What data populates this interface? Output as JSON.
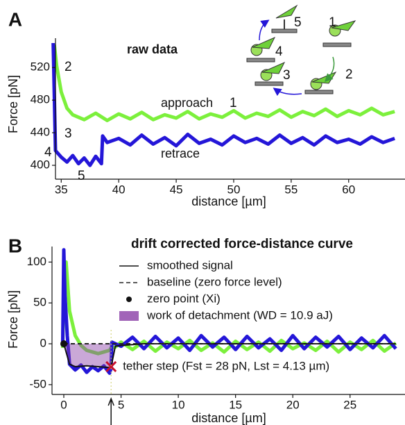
{
  "chart_data": [
    {
      "type": "line",
      "panel_label": "A",
      "title": "raw data",
      "xlabel": "distance [µm]",
      "ylabel": "Force [pN]",
      "xlim": [
        34.5,
        64.9
      ],
      "ylim": [
        383,
        556
      ],
      "xticks": [
        35,
        40,
        45,
        50,
        55,
        60
      ],
      "yticks": [
        400,
        440,
        480,
        520
      ],
      "series": [
        {
          "name": "approach",
          "color": "#7cf03c",
          "x": [
            34.4,
            34.6,
            35,
            35.5,
            36,
            37,
            38,
            39,
            40,
            41,
            42,
            43,
            44,
            45,
            46,
            47,
            48,
            49,
            50,
            51,
            52,
            53,
            54,
            55,
            56,
            57,
            58,
            59,
            60,
            61,
            62,
            63,
            64
          ],
          "values": [
            548,
            522,
            490,
            470,
            462,
            456,
            464,
            455,
            463,
            457,
            465,
            456,
            462,
            458,
            466,
            457,
            463,
            459,
            467,
            458,
            464,
            460,
            468,
            459,
            466,
            461,
            469,
            460,
            467,
            462,
            470,
            462,
            466
          ]
        },
        {
          "name": "retrace",
          "color": "#2416d8",
          "x": [
            34.3,
            34.5,
            35,
            35.5,
            36,
            36.5,
            37,
            37.5,
            38,
            38.5,
            38.6,
            39,
            40,
            41,
            42,
            43,
            44,
            45,
            46,
            47,
            48,
            49,
            50,
            51,
            52,
            53,
            54,
            55,
            56,
            57,
            58,
            59,
            60,
            61,
            62,
            63,
            64
          ],
          "values": [
            550,
            418,
            410,
            404,
            412,
            402,
            409,
            400,
            411,
            402,
            436,
            428,
            433,
            425,
            437,
            426,
            434,
            424,
            438,
            427,
            432,
            425,
            436,
            428,
            433,
            426,
            437,
            427,
            434,
            425,
            436,
            428,
            432,
            426,
            435,
            428,
            433
          ]
        }
      ],
      "annotations": [
        "1",
        "2",
        "3",
        "4",
        "5"
      ],
      "diagram_labels": [
        "1",
        "2",
        "3",
        "4",
        "5"
      ],
      "annotation_color": "#e0661a"
    },
    {
      "type": "line",
      "panel_label": "B",
      "title": "drift corrected force-distance curve",
      "xlabel": "distance [µm]",
      "ylabel": "Force [pN]",
      "xlim": [
        -1.03,
        29.8
      ],
      "ylim": [
        -62,
        119
      ],
      "xticks": [
        0,
        5,
        10,
        15,
        20,
        25
      ],
      "yticks": [
        -50,
        0,
        50,
        100
      ],
      "series": [
        {
          "color": "#7cf03c",
          "x": [
            -0.1,
            0,
            0.2,
            0.5,
            1,
            1.5,
            2,
            2.5,
            3,
            3.5,
            4,
            4.13,
            4.5,
            5,
            6,
            7,
            8,
            9,
            10,
            11,
            12,
            13,
            14,
            15,
            16,
            17,
            18,
            19,
            20,
            21,
            22,
            23,
            24,
            25,
            26,
            27,
            28,
            29
          ],
          "values": [
            -5,
            60,
            100,
            40,
            10,
            -2,
            -8,
            -10,
            -12,
            -10,
            -8,
            -5,
            -4,
            2,
            -7,
            3,
            -9,
            2,
            -6,
            4,
            -8,
            1,
            -10,
            3,
            -7,
            2,
            -9,
            4,
            -6,
            1,
            -8,
            3,
            -10,
            2,
            -7,
            4,
            -9,
            1
          ]
        },
        {
          "color": "#2416d8",
          "x": [
            -0.1,
            0,
            0.1,
            0.3,
            0.5,
            1,
            1.5,
            2,
            2.5,
            3,
            3.5,
            4,
            4.13,
            4.2,
            5,
            6,
            7,
            8,
            9,
            10,
            11,
            12,
            13,
            14,
            15,
            16,
            17,
            18,
            19,
            20,
            21,
            22,
            23,
            24,
            25,
            26,
            27,
            28,
            29
          ],
          "values": [
            0,
            115,
            60,
            10,
            -25,
            -32,
            -26,
            -35,
            -28,
            -33,
            -27,
            -36,
            -30,
            2,
            -3,
            8,
            -6,
            9,
            -5,
            7,
            -8,
            10,
            -4,
            8,
            -7,
            9,
            -5,
            6,
            -8,
            10,
            -6,
            8,
            -4,
            9,
            -7,
            7,
            -5,
            10,
            -6
          ]
        },
        {
          "name": "smoothed signal",
          "color": "#111111",
          "x": [
            0,
            0.2,
            0.5,
            1,
            2,
            3,
            4,
            4.13,
            4.5,
            5,
            6,
            7,
            10,
            15,
            20,
            25,
            29
          ],
          "values": [
            0,
            -10,
            -25,
            -28,
            -27,
            -28,
            -29,
            -28,
            -3,
            -2,
            -1,
            0,
            0,
            0,
            0,
            0,
            0
          ]
        },
        {
          "name": "baseline (zero force level)",
          "color": "#222222",
          "dashed": true,
          "x": [
            0,
            29
          ],
          "values": [
            0,
            0
          ]
        }
      ],
      "zero_point": {
        "name": "zero point (Xi)",
        "x": 0,
        "y": 0,
        "color": "#111111"
      },
      "work": {
        "name": "work of detachment (WD = 10.9 aJ)",
        "color": "#8a3fa6"
      },
      "tether_step": {
        "label": "tether step (Fst = 28 pN, Lst = 4.13 µm)",
        "x": 4.13,
        "y": -28,
        "color": "#c8102e"
      }
    }
  ]
}
